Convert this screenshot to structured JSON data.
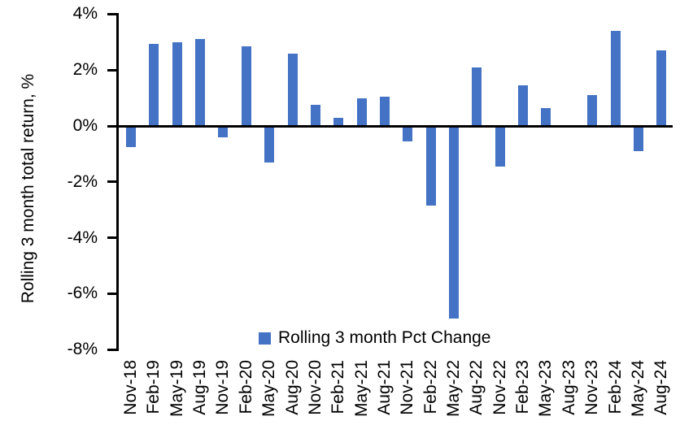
{
  "chart_data": {
    "type": "bar",
    "title": "",
    "ylabel": "Rolling 3 month total return, %",
    "xlabel": "",
    "categories": [
      "Nov-18",
      "Feb-19",
      "May-19",
      "Aug-19",
      "Nov-19",
      "Feb-20",
      "May-20",
      "Aug-20",
      "Nov-20",
      "Feb-21",
      "May-21",
      "Aug-21",
      "Nov-21",
      "Feb-22",
      "May-22",
      "Aug-22",
      "Nov-22",
      "Feb-23",
      "May-23",
      "Aug-23",
      "Nov-23",
      "Feb-24",
      "May-24",
      "Aug-24"
    ],
    "values": [
      -0.75,
      2.95,
      3.0,
      3.1,
      -0.4,
      2.85,
      -1.3,
      2.6,
      0.75,
      0.3,
      1.0,
      1.05,
      -0.55,
      -2.85,
      -6.9,
      2.1,
      -1.45,
      1.45,
      0.65,
      0.0,
      1.1,
      3.4,
      -0.9,
      2.7
    ],
    "ylim": [
      -8,
      4
    ],
    "ytick_step": 2,
    "yticks": [
      4,
      2,
      0,
      -2,
      -4,
      -6,
      -8
    ],
    "ytick_labels": [
      "4%",
      "2%",
      "0%",
      "-2%",
      "-4%",
      "-6%",
      "-8%"
    ],
    "grid": false,
    "bar_color": "#4472C4",
    "axis_color": "#000000",
    "legend": {
      "label": "Rolling 3 month Pct Change",
      "position": "bottom-center"
    }
  }
}
